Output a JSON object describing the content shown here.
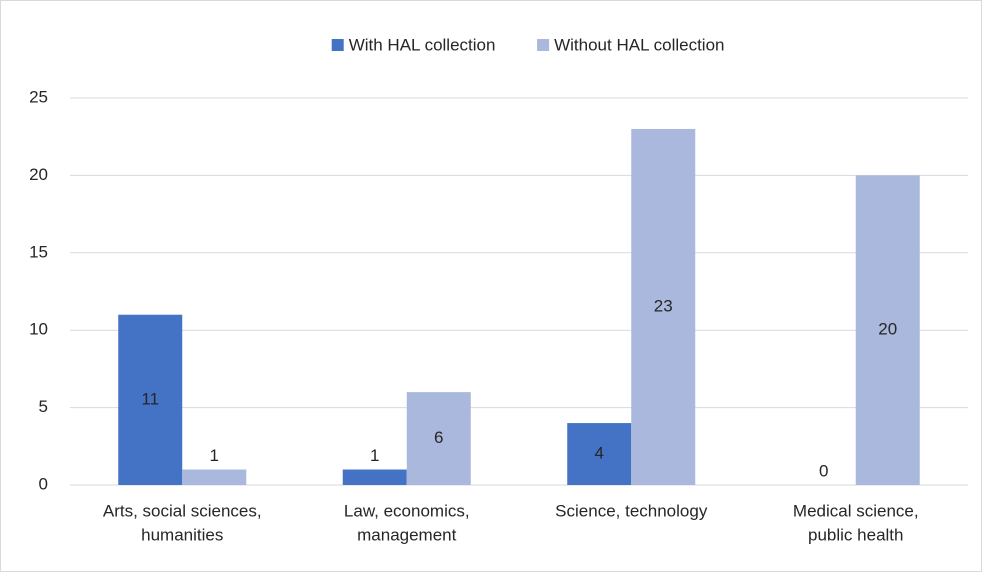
{
  "chart_data": {
    "type": "bar",
    "categories": [
      [
        "Arts, social sciences,",
        "humanities"
      ],
      [
        "Law, economics,",
        "management"
      ],
      [
        "Science, technology"
      ],
      [
        "Medical science,",
        "public health"
      ]
    ],
    "series": [
      {
        "name": "With HAL collection",
        "color": "#4472c4",
        "values": [
          11,
          1,
          4,
          0
        ]
      },
      {
        "name": "Without HAL collection",
        "color": "#a9b8dc",
        "values": [
          1,
          6,
          23,
          20
        ]
      }
    ],
    "ylim": [
      0,
      25
    ],
    "yticks": [
      0,
      5,
      10,
      15,
      20,
      25
    ],
    "grid": true,
    "legend": "top"
  }
}
